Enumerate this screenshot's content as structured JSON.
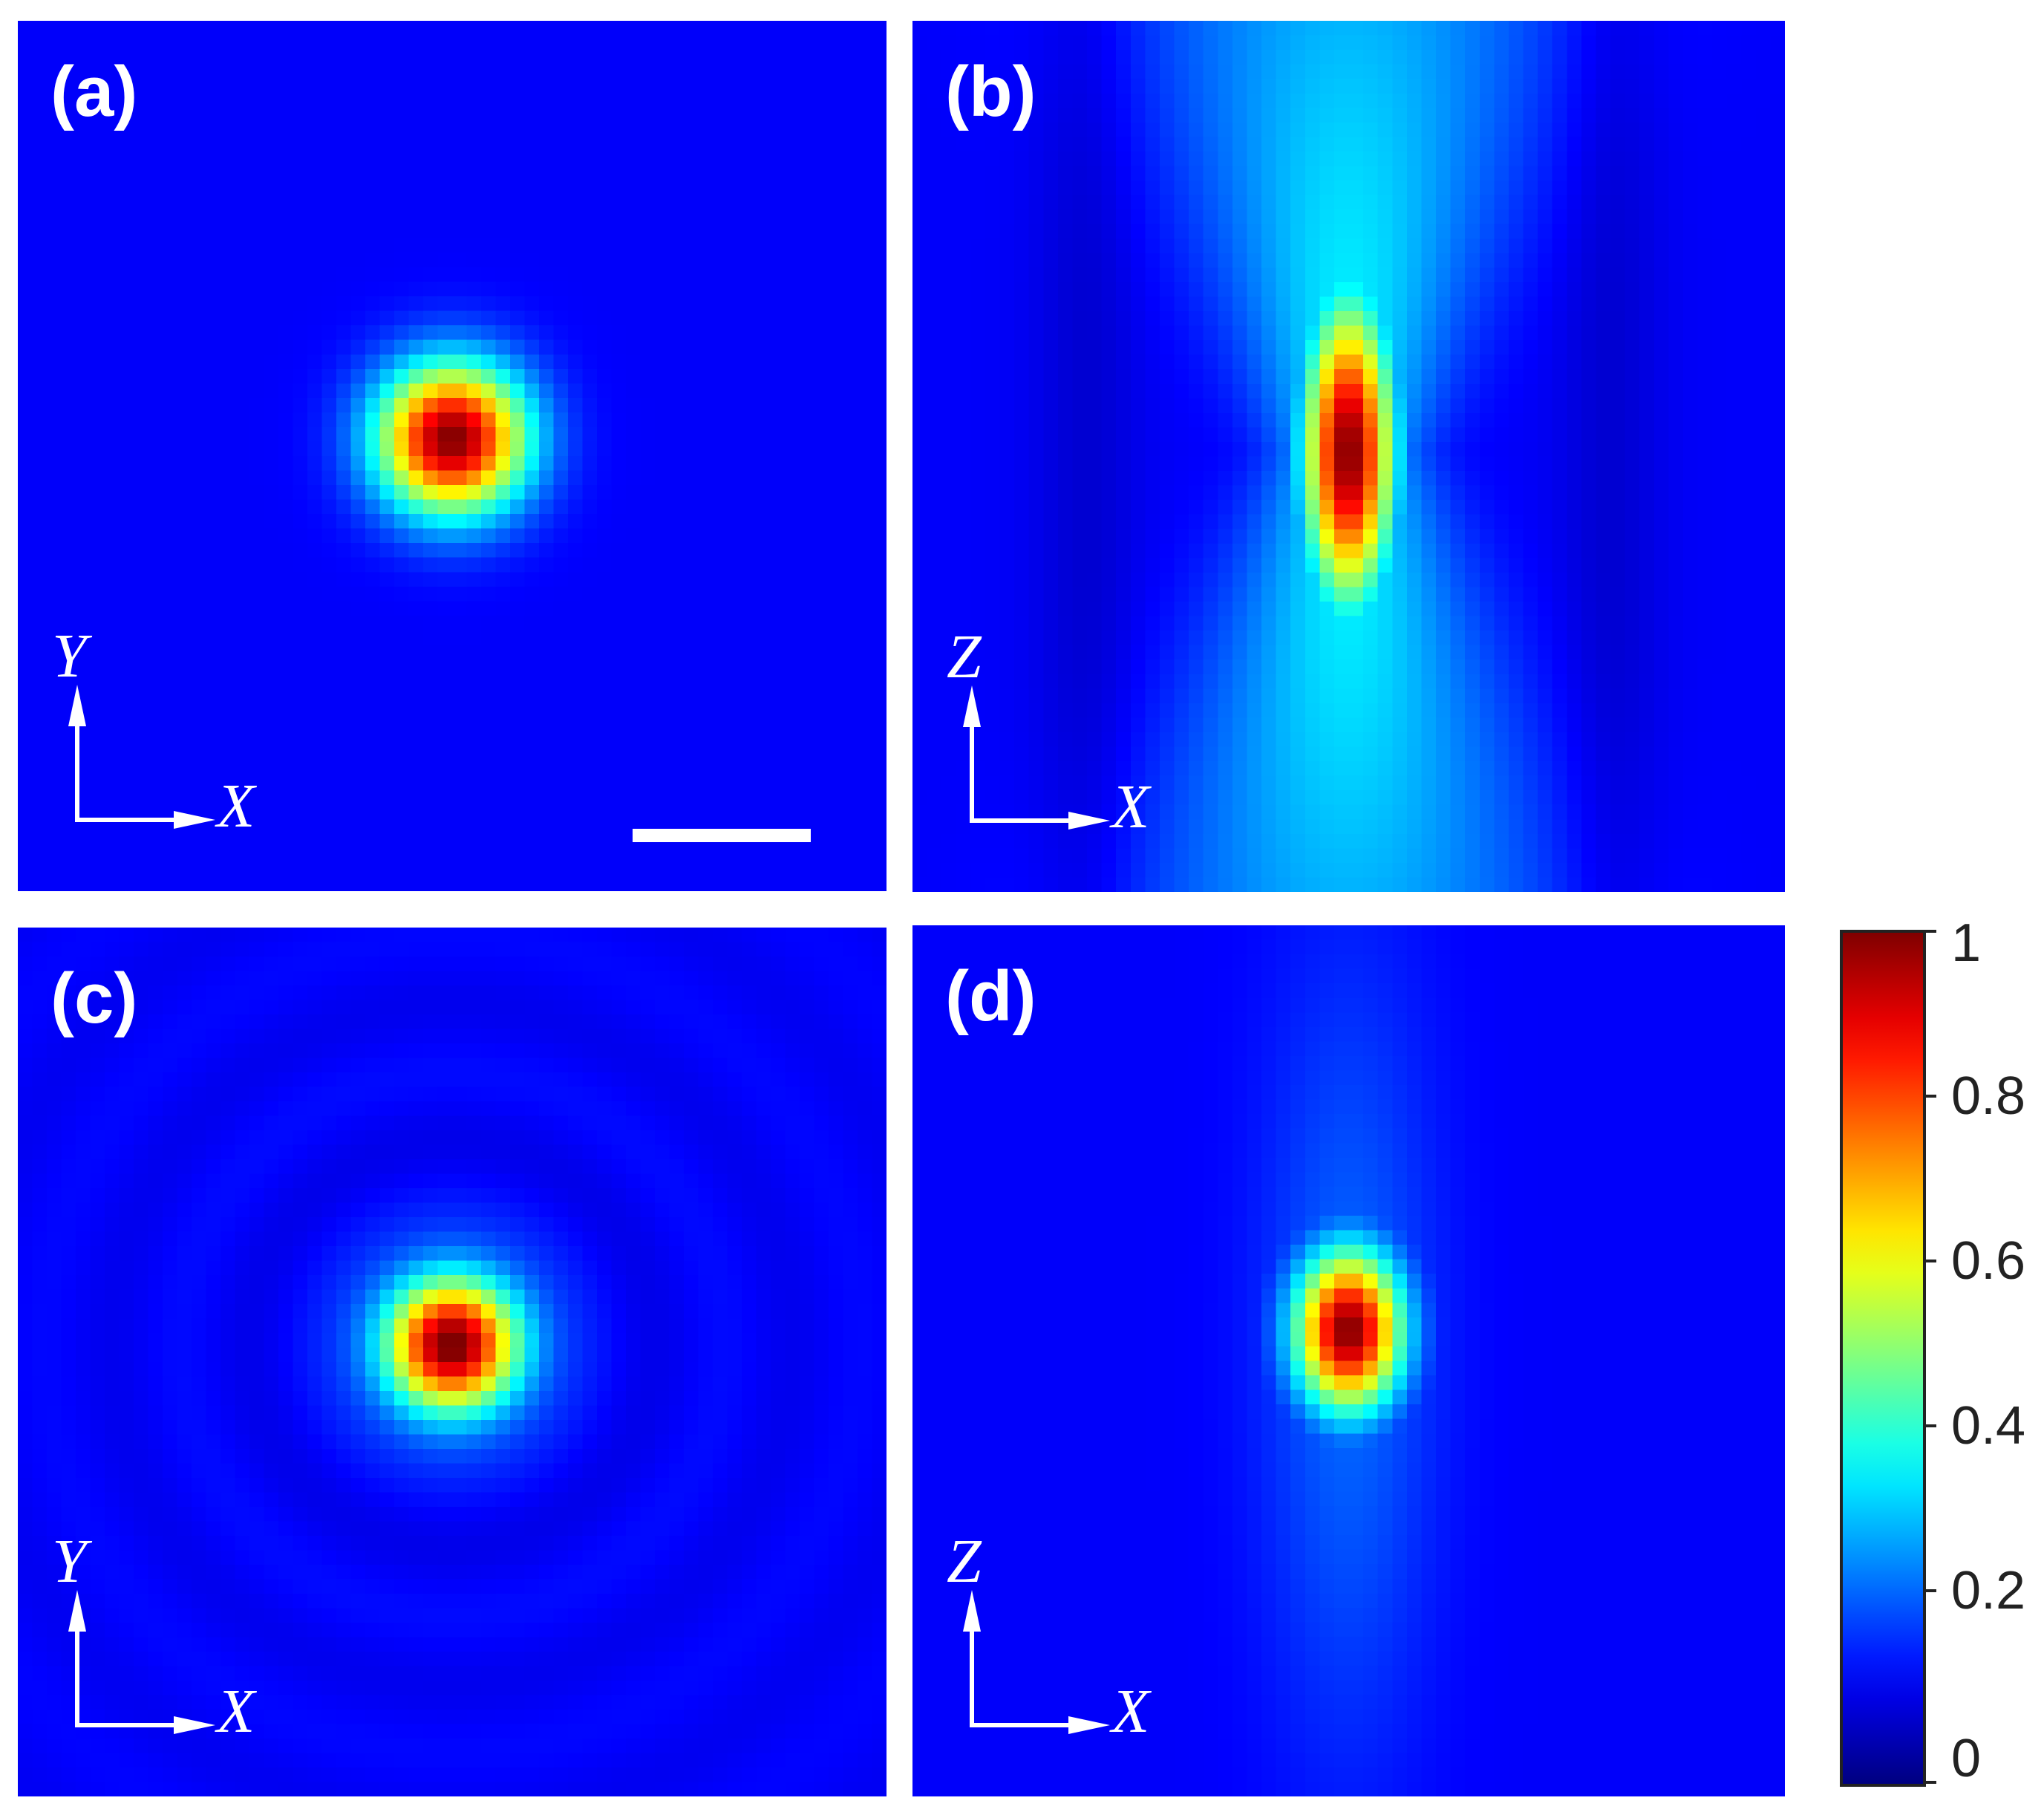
{
  "chart_data": [
    {
      "type": "heatmap",
      "panel_label": "(a)",
      "xlabel": "X",
      "ylabel": "Y",
      "profile": "round focal spot centered in the frame",
      "peak_value": 1,
      "scale_bar": true
    },
    {
      "type": "heatmap",
      "panel_label": "(b)",
      "xlabel": "X",
      "ylabel": "Z",
      "profile": "axially elongated focal spot with hourglass-shaped side lobes"
    },
    {
      "type": "heatmap",
      "panel_label": "(c)",
      "xlabel": "X",
      "ylabel": "Y",
      "profile": "round focal spot with faint concentric rings"
    },
    {
      "type": "heatmap",
      "panel_label": "(d)",
      "xlabel": "X",
      "ylabel": "Z",
      "profile": "compact focal spot with weak tails above and below"
    }
  ],
  "colorbar": {
    "colormap": "jet",
    "range": [
      0,
      1
    ],
    "ticks": [
      "1",
      "0.8",
      "0.6",
      "0.4",
      "0.2",
      "0"
    ]
  },
  "colors": {
    "background": "#0a16a8",
    "text": "#ffffff"
  }
}
